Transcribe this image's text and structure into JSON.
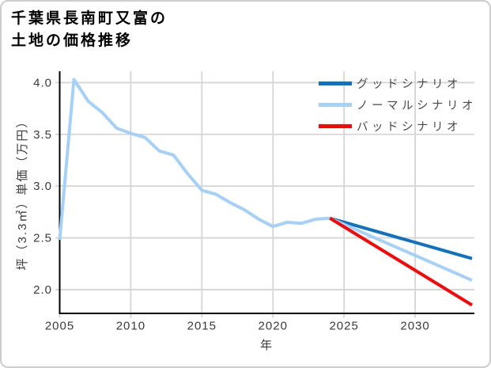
{
  "title": {
    "line1": "千葉県長南町又富の",
    "line2": "土地の価格推移"
  },
  "chart_data": {
    "type": "line",
    "title": "千葉県長南町又富の土地の価格推移",
    "xlabel": "年",
    "ylabel": "坪（3.3㎡）単価（万円）",
    "xlim": [
      2005,
      2034
    ],
    "ylim": [
      1.77,
      4.11
    ],
    "x_ticks": [
      2005,
      2010,
      2015,
      2020,
      2025,
      2030
    ],
    "y_ticks": [
      "2.0",
      "2.5",
      "3.0",
      "3.5",
      "4.0"
    ],
    "grid": true,
    "legend_position": "top-right",
    "colors": {
      "good": "#0e71c3",
      "normal": "#a5d0f7",
      "bad": "#f90606",
      "gridline": "#d5d5d5",
      "spine": "#000000",
      "tick_text": "#3a3a3a"
    },
    "series": [
      {
        "id": "actual",
        "legend": null,
        "color": "#a5d0f7",
        "x": [
          2005,
          2006,
          2007,
          2008,
          2009,
          2010,
          2011,
          2012,
          2013,
          2014,
          2015,
          2016,
          2017,
          2018,
          2019,
          2020,
          2021,
          2022,
          2023,
          2024
        ],
        "y": [
          2.48,
          4.03,
          3.82,
          3.71,
          3.56,
          3.51,
          3.47,
          3.34,
          3.3,
          3.12,
          2.96,
          2.92,
          2.84,
          2.77,
          2.68,
          2.61,
          2.65,
          2.64,
          2.68,
          2.69
        ]
      },
      {
        "id": "good",
        "legend": "グッドシナリオ",
        "color": "#0e71c3",
        "x": [
          2024,
          2034
        ],
        "y": [
          2.69,
          2.3
        ]
      },
      {
        "id": "normal",
        "legend": "ノーマルシナリオ",
        "color": "#a5d0f7",
        "x": [
          2024,
          2034
        ],
        "y": [
          2.69,
          2.09
        ]
      },
      {
        "id": "bad",
        "legend": "バッドシナリオ",
        "color": "#f90606",
        "x": [
          2024,
          2034
        ],
        "y": [
          2.69,
          1.85
        ]
      }
    ]
  }
}
